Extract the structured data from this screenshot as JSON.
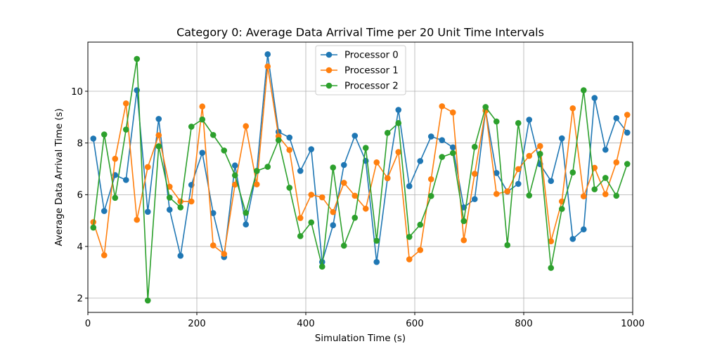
{
  "chart_data": {
    "type": "line",
    "title": "Category 0: Average Data Arrival Time per 20 Unit Time Intervals",
    "xlabel": "Simulation Time (s)",
    "ylabel": "Average Data Arrival Time (s)",
    "xlim": [
      0,
      1000
    ],
    "ylim": [
      1.45,
      11.9
    ],
    "xticks": [
      0,
      200,
      400,
      600,
      800,
      1000
    ],
    "yticks": [
      2,
      4,
      6,
      8,
      10
    ],
    "grid": true,
    "legend_position": "top-center",
    "x": [
      10,
      30,
      50,
      70,
      90,
      110,
      130,
      150,
      170,
      190,
      210,
      230,
      250,
      270,
      290,
      310,
      330,
      350,
      370,
      390,
      410,
      430,
      450,
      470,
      490,
      510,
      530,
      550,
      570,
      590,
      610,
      630,
      650,
      670,
      690,
      710,
      730,
      750,
      770,
      790,
      810,
      830,
      850,
      870,
      890,
      910,
      930,
      950,
      970,
      990
    ],
    "series": [
      {
        "name": "Processor 0",
        "color": "#1f77b4",
        "values": [
          8.17,
          5.37,
          6.76,
          6.57,
          10.04,
          5.34,
          8.93,
          5.42,
          3.64,
          6.38,
          7.62,
          5.29,
          3.59,
          7.13,
          4.85,
          6.91,
          11.43,
          8.43,
          8.21,
          6.92,
          7.76,
          3.4,
          4.82,
          7.15,
          8.28,
          7.31,
          3.4,
          6.64,
          9.28,
          6.33,
          7.3,
          8.25,
          8.11,
          7.83,
          5.51,
          5.83,
          9.26,
          6.84,
          6.12,
          6.42,
          8.9,
          7.18,
          6.53,
          8.18,
          4.29,
          4.66,
          9.74,
          7.74,
          8.96,
          8.4
        ]
      },
      {
        "name": "Processor 1",
        "color": "#ff7f0e",
        "values": [
          4.94,
          3.66,
          7.39,
          9.53,
          5.03,
          7.07,
          8.3,
          6.31,
          5.74,
          5.74,
          9.41,
          4.04,
          3.71,
          6.39,
          8.65,
          6.4,
          10.96,
          8.26,
          7.73,
          5.1,
          6.0,
          5.9,
          5.33,
          6.46,
          5.96,
          5.46,
          7.25,
          6.64,
          7.65,
          3.5,
          3.86,
          6.6,
          9.42,
          9.18,
          4.24,
          6.81,
          9.25,
          6.03,
          6.13,
          6.99,
          7.5,
          7.88,
          4.2,
          5.74,
          9.34,
          5.94,
          7.04,
          6.02,
          7.25,
          9.09
        ]
      },
      {
        "name": "Processor 2",
        "color": "#2ca02c",
        "values": [
          4.73,
          8.33,
          5.88,
          8.52,
          11.25,
          1.91,
          7.87,
          5.89,
          5.51,
          8.63,
          8.91,
          8.31,
          7.71,
          6.75,
          5.3,
          6.92,
          7.08,
          8.11,
          6.27,
          4.4,
          4.93,
          3.22,
          7.05,
          4.03,
          5.11,
          7.81,
          4.22,
          8.39,
          8.77,
          4.37,
          4.84,
          5.95,
          7.46,
          7.61,
          4.98,
          7.85,
          9.39,
          8.83,
          4.05,
          8.77,
          5.97,
          7.58,
          3.17,
          5.45,
          6.86,
          10.04,
          6.21,
          6.65,
          5.96,
          7.19
        ]
      }
    ]
  }
}
